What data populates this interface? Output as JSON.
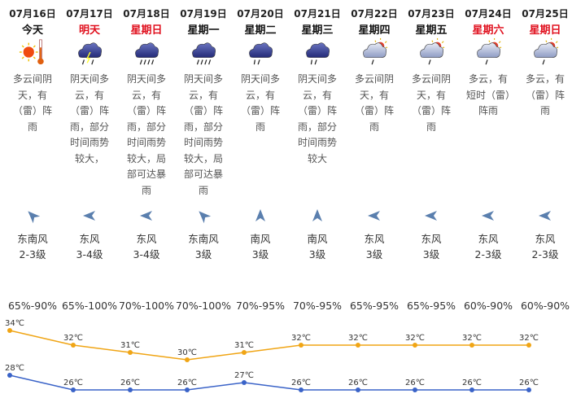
{
  "days": [
    {
      "date": "07月16日",
      "day": "今天",
      "red": false,
      "icon": "sun-thermometer-icon",
      "desc": "多云间阴天，有（雷）阵雨",
      "wind_dir": "东南风",
      "wind_level": "2-3级",
      "wind_angle": -45,
      "humidity": "65%-90%",
      "high": "34℃",
      "low": "28℃"
    },
    {
      "date": "07月17日",
      "day": "明天",
      "red": true,
      "icon": "thunderstorm-icon",
      "desc": "阴天间多云，有（雷）阵雨，部分时间雨势较大，",
      "wind_dir": "东风",
      "wind_level": "3-4级",
      "wind_angle": -90,
      "humidity": "65%-100%",
      "high": "32℃",
      "low": "26℃"
    },
    {
      "date": "07月18日",
      "day": "星期日",
      "red": true,
      "icon": "heavy-rain-icon",
      "desc": "阴天间多云，有（雷）阵雨，部分时间雨势较大，局部可达暴雨",
      "wind_dir": "东风",
      "wind_level": "3-4级",
      "wind_angle": -90,
      "humidity": "70%-100%",
      "high": "31℃",
      "low": "26℃"
    },
    {
      "date": "07月19日",
      "day": "星期一",
      "red": false,
      "icon": "heavy-rain-icon",
      "desc": "阴天间多云，有（雷）阵雨，部分时间雨势较大，局部可达暴雨",
      "wind_dir": "东南风",
      "wind_level": "3级",
      "wind_angle": -45,
      "humidity": "70%-100%",
      "high": "30℃",
      "low": "26℃"
    },
    {
      "date": "07月20日",
      "day": "星期二",
      "red": false,
      "icon": "rain-icon",
      "desc": "阴天间多云，有（雷）阵雨",
      "wind_dir": "南风",
      "wind_level": "3级",
      "wind_angle": 0,
      "humidity": "70%-95%",
      "high": "31℃",
      "low": "27℃"
    },
    {
      "date": "07月21日",
      "day": "星期三",
      "red": false,
      "icon": "rain-icon",
      "desc": "阴天间多云，有（雷）阵雨，部分时间雨势较大",
      "wind_dir": "南风",
      "wind_level": "3级",
      "wind_angle": 0,
      "humidity": "70%-95%",
      "high": "32℃",
      "low": "26℃"
    },
    {
      "date": "07月22日",
      "day": "星期四",
      "red": false,
      "icon": "partly-cloudy-shower-icon",
      "desc": "多云间阴天，有（雷）阵雨",
      "wind_dir": "东风",
      "wind_level": "3级",
      "wind_angle": -90,
      "humidity": "65%-95%",
      "high": "32℃",
      "low": "26℃"
    },
    {
      "date": "07月23日",
      "day": "星期五",
      "red": false,
      "icon": "partly-cloudy-shower-icon",
      "desc": "多云间阴天，有（雷）阵雨",
      "wind_dir": "东风",
      "wind_level": "3级",
      "wind_angle": -90,
      "humidity": "65%-95%",
      "high": "32℃",
      "low": "26℃"
    },
    {
      "date": "07月24日",
      "day": "星期六",
      "red": true,
      "icon": "partly-cloudy-shower-icon",
      "desc": "多云，有短时（雷）阵雨",
      "wind_dir": "东风",
      "wind_level": "2-3级",
      "wind_angle": -90,
      "humidity": "60%-90%",
      "high": "32℃",
      "low": "26℃"
    },
    {
      "date": "07月25日",
      "day": "星期日",
      "red": true,
      "icon": "partly-cloudy-shower-icon",
      "desc": "多云，有（雷）阵雨",
      "wind_dir": "东风",
      "wind_level": "2-3级",
      "wind_angle": -90,
      "humidity": "60%-90%",
      "high": "32℃",
      "low": "26℃"
    }
  ],
  "chart_data": {
    "type": "line",
    "x": [
      "07月16日",
      "07月17日",
      "07月18日",
      "07月19日",
      "07月20日",
      "07月21日",
      "07月22日",
      "07月23日",
      "07月24日",
      "07月25日"
    ],
    "series": [
      {
        "values": [
          34,
          32,
          31,
          30,
          31,
          32,
          32,
          32,
          32,
          32
        ],
        "color": "#f0a515"
      },
      {
        "values": [
          28,
          26,
          26,
          26,
          27,
          26,
          26,
          26,
          26,
          26
        ],
        "color": "#3a63c8"
      }
    ],
    "unit": "℃"
  },
  "colors": {
    "red": "#e0101e",
    "high": "#f0a515",
    "low": "#3a63c8"
  }
}
